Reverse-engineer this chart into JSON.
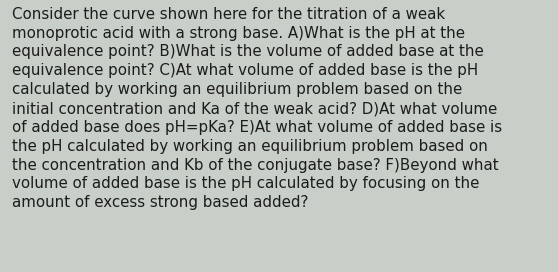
{
  "background_color": "#c8cec8",
  "text_color": "#1c1c1c",
  "lines": [
    "Consider the curve shown here for the titration of a weak",
    "monoprotic acid with a strong base. A)What is the pH at the",
    "equivalence point? B)What is the volume of added base at the",
    "equivalence point? C)At what volume of added base is the pH",
    "calculated by working an equilibrium problem based on the",
    "initial concentration and Ka of the weak acid? D)At what volume",
    "of added base does pH=pKa? E)At what volume of added base is",
    "the pH calculated by working an equilibrium problem based on",
    "the concentration and Kb of the conjugate base? F)Beyond what",
    "volume of added base is the pH calculated by focusing on the",
    "amount of excess strong based added?"
  ],
  "font_size": 10.8,
  "font_family": "DejaVu Sans",
  "fig_width": 5.58,
  "fig_height": 2.72,
  "dpi": 100
}
